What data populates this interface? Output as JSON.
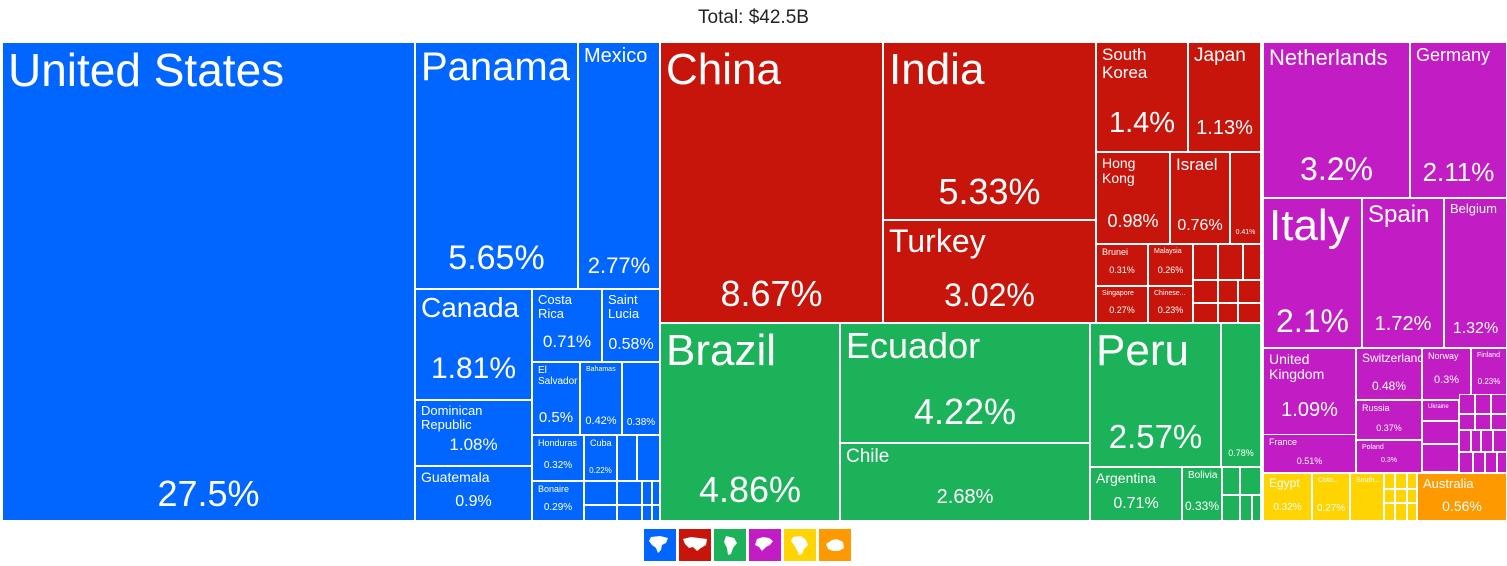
{
  "chart_data": {
    "type": "treemap",
    "title": "Total: $42.5B",
    "colors": {
      "north-america": "#0066ff",
      "asia": "#c8150c",
      "south-america": "#1cb25a",
      "europe": "#c21cc5",
      "africa": "#ffd400",
      "oceania": "#ff9900"
    },
    "tiles": [
      {
        "name": "United States",
        "value": "27.5%",
        "region": "north-america"
      },
      {
        "name": "Panama",
        "value": "5.65%",
        "region": "north-america"
      },
      {
        "name": "Mexico",
        "value": "2.77%",
        "region": "north-america"
      },
      {
        "name": "Canada",
        "value": "1.81%",
        "region": "north-america"
      },
      {
        "name": "Costa Rica",
        "value": "0.71%",
        "region": "north-america"
      },
      {
        "name": "Saint Lucia",
        "value": "0.58%",
        "region": "north-america"
      },
      {
        "name": "Dominican Republic",
        "value": "1.08%",
        "region": "north-america"
      },
      {
        "name": "El Salvador",
        "value": "0.5%",
        "region": "north-america"
      },
      {
        "name": "Bahamas",
        "value": "0.42%",
        "region": "north-america"
      },
      {
        "name": "",
        "value": "0.38%",
        "region": "north-america"
      },
      {
        "name": "Guatemala",
        "value": "0.9%",
        "region": "north-america"
      },
      {
        "name": "Honduras",
        "value": "0.32%",
        "region": "north-america"
      },
      {
        "name": "Cuba",
        "value": "0.22%",
        "region": "north-america"
      },
      {
        "name": "Bonaire",
        "value": "0.29%",
        "region": "north-america"
      },
      {
        "name": "China",
        "value": "8.67%",
        "region": "asia"
      },
      {
        "name": "India",
        "value": "5.33%",
        "region": "asia"
      },
      {
        "name": "Turkey",
        "value": "3.02%",
        "region": "asia"
      },
      {
        "name": "South Korea",
        "value": "1.4%",
        "region": "asia"
      },
      {
        "name": "Japan",
        "value": "1.13%",
        "region": "asia"
      },
      {
        "name": "Hong Kong",
        "value": "0.98%",
        "region": "asia"
      },
      {
        "name": "Israel",
        "value": "0.76%",
        "region": "asia"
      },
      {
        "name": "",
        "value": "0.41%",
        "region": "asia"
      },
      {
        "name": "Brunei",
        "value": "0.31%",
        "region": "asia"
      },
      {
        "name": "Malaysia",
        "value": "0.26%",
        "region": "asia"
      },
      {
        "name": "Singapore",
        "value": "0.27%",
        "region": "asia"
      },
      {
        "name": "Chinese...",
        "value": "0.23%",
        "region": "asia"
      },
      {
        "name": "Brazil",
        "value": "4.86%",
        "region": "south-america"
      },
      {
        "name": "Ecuador",
        "value": "4.22%",
        "region": "south-america"
      },
      {
        "name": "Chile",
        "value": "2.68%",
        "region": "south-america"
      },
      {
        "name": "Peru",
        "value": "2.57%",
        "region": "south-america"
      },
      {
        "name": "",
        "value": "0.78%",
        "region": "south-america"
      },
      {
        "name": "Argentina",
        "value": "0.71%",
        "region": "south-america"
      },
      {
        "name": "Bolivia",
        "value": "0.33%",
        "region": "south-america"
      },
      {
        "name": "Netherlands",
        "value": "3.2%",
        "region": "europe"
      },
      {
        "name": "Germany",
        "value": "2.11%",
        "region": "europe"
      },
      {
        "name": "Italy",
        "value": "2.1%",
        "region": "europe"
      },
      {
        "name": "Spain",
        "value": "1.72%",
        "region": "europe"
      },
      {
        "name": "Belgium",
        "value": "1.32%",
        "region": "europe"
      },
      {
        "name": "United Kingdom",
        "value": "1.09%",
        "region": "europe"
      },
      {
        "name": "Switzerland",
        "value": "0.48%",
        "region": "europe"
      },
      {
        "name": "Norway",
        "value": "0.3%",
        "region": "europe"
      },
      {
        "name": "Finland",
        "value": "0.23%",
        "region": "europe"
      },
      {
        "name": "Ukraine",
        "value": "",
        "region": "europe"
      },
      {
        "name": "Russia",
        "value": "0.37%",
        "region": "europe"
      },
      {
        "name": "France",
        "value": "0.51%",
        "region": "europe"
      },
      {
        "name": "Poland",
        "value": "0.3%",
        "region": "europe"
      },
      {
        "name": "Egypt",
        "value": "0.32%",
        "region": "africa"
      },
      {
        "name": "Coto...",
        "value": "0.27%",
        "region": "africa"
      },
      {
        "name": "South...",
        "value": "",
        "region": "africa"
      },
      {
        "name": "Australia",
        "value": "0.56%",
        "region": "oceania"
      }
    ],
    "legend": [
      {
        "region": "north-america",
        "icon": "north-america-icon"
      },
      {
        "region": "asia",
        "icon": "asia-icon"
      },
      {
        "region": "south-america",
        "icon": "south-america-icon"
      },
      {
        "region": "europe",
        "icon": "europe-icon"
      },
      {
        "region": "africa",
        "icon": "africa-icon"
      },
      {
        "region": "oceania",
        "icon": "oceania-icon"
      }
    ]
  }
}
